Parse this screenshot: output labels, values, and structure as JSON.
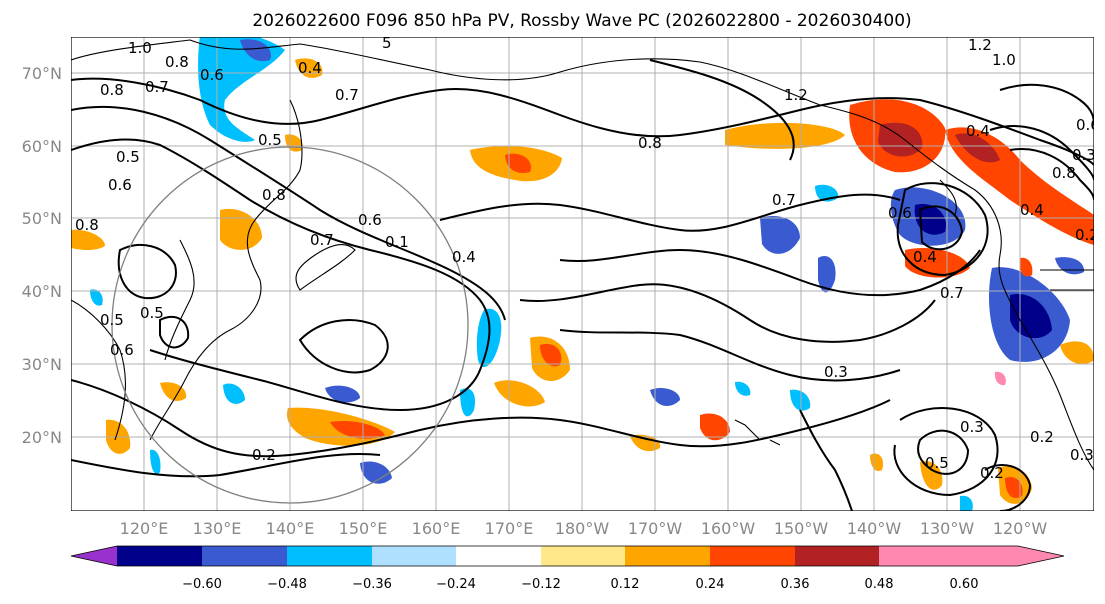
{
  "title": "2026022600 F096 850 hPa PV, Rossby Wave PC (2026022800 - 2026030400)",
  "lat_labels": [
    "70°N",
    "60°N",
    "50°N",
    "40°N",
    "30°N",
    "20°N"
  ],
  "lon_labels": [
    "120°E",
    "130°E",
    "140°E",
    "150°E",
    "160°E",
    "170°E",
    "180°W",
    "170°W",
    "160°W",
    "150°W",
    "140°W",
    "130°W",
    "120°W"
  ],
  "colorbar": {
    "ticks": [
      "−0.60",
      "−0.48",
      "−0.36",
      "−0.24",
      "−0.12",
      "0.12",
      "0.24",
      "0.36",
      "0.48",
      "0.60"
    ],
    "colors": [
      "#9932cc",
      "#00008b",
      "#3a5bd0",
      "#00bfff",
      "#b0e0ff",
      "#ffffff",
      "#ffe88a",
      "#ffa500",
      "#ff4500",
      "#b22222",
      "#ff88b0"
    ]
  },
  "contour_labels": [
    "1.0",
    "0.8",
    "0.6",
    "0.4",
    "0.8",
    "0.7",
    "0.7",
    "0.5",
    "0.6",
    "0.5",
    "0.8",
    "0.7",
    "0.6",
    "0.1",
    "0.4",
    "0.5",
    "0.5",
    "0.6",
    "0.7",
    "0.8",
    "0.7",
    "0.4",
    "0.6",
    "0.4",
    "0.3",
    "0.3",
    "0.2",
    "0.3",
    "0.2",
    "0.5",
    "0.2",
    "0.3",
    "0.2",
    "1.2",
    "1.0",
    "1.2",
    "0.8",
    "0.4",
    "0.8",
    "0.6",
    "5"
  ]
}
